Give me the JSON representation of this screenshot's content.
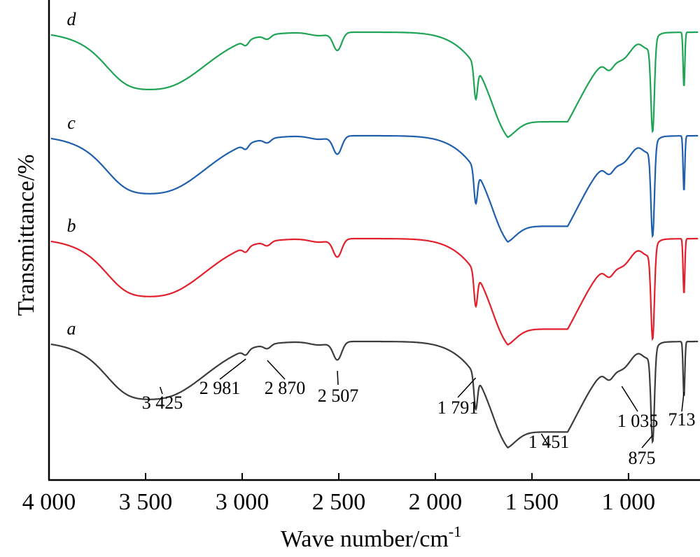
{
  "chart_data": {
    "type": "line",
    "xlabel": "Wave number/cm",
    "xlabel_sup": "-1",
    "ylabel": "Transmittance/%",
    "xlim": [
      4000,
      630
    ],
    "x_reversed": true,
    "grid": false,
    "legend": "none",
    "x_ticks": [
      {
        "value": 4000,
        "label": "4 000"
      },
      {
        "value": 3500,
        "label": "3 500"
      },
      {
        "value": 3000,
        "label": "3 000"
      },
      {
        "value": 2500,
        "label": "2 500"
      },
      {
        "value": 2000,
        "label": "2 000"
      },
      {
        "value": 1500,
        "label": "1 500"
      },
      {
        "value": 1000,
        "label": "1 000"
      }
    ],
    "series": [
      {
        "tag": "a",
        "color": "#3c3c3c"
      },
      {
        "tag": "b",
        "color": "#e2202c"
      },
      {
        "tag": "c",
        "color": "#1f5fad"
      },
      {
        "tag": "d",
        "color": "#1fa455"
      }
    ],
    "peaks": [
      {
        "x": 3425,
        "label": "3 425"
      },
      {
        "x": 2981,
        "label": "2 981"
      },
      {
        "x": 2870,
        "label": "2 870"
      },
      {
        "x": 2507,
        "label": "2 507"
      },
      {
        "x": 1791,
        "label": "1 791"
      },
      {
        "x": 1451,
        "label": "1 451"
      },
      {
        "x": 1035,
        "label": "1 035"
      },
      {
        "x": 875,
        "label": "875"
      },
      {
        "x": 713,
        "label": "713"
      }
    ]
  }
}
